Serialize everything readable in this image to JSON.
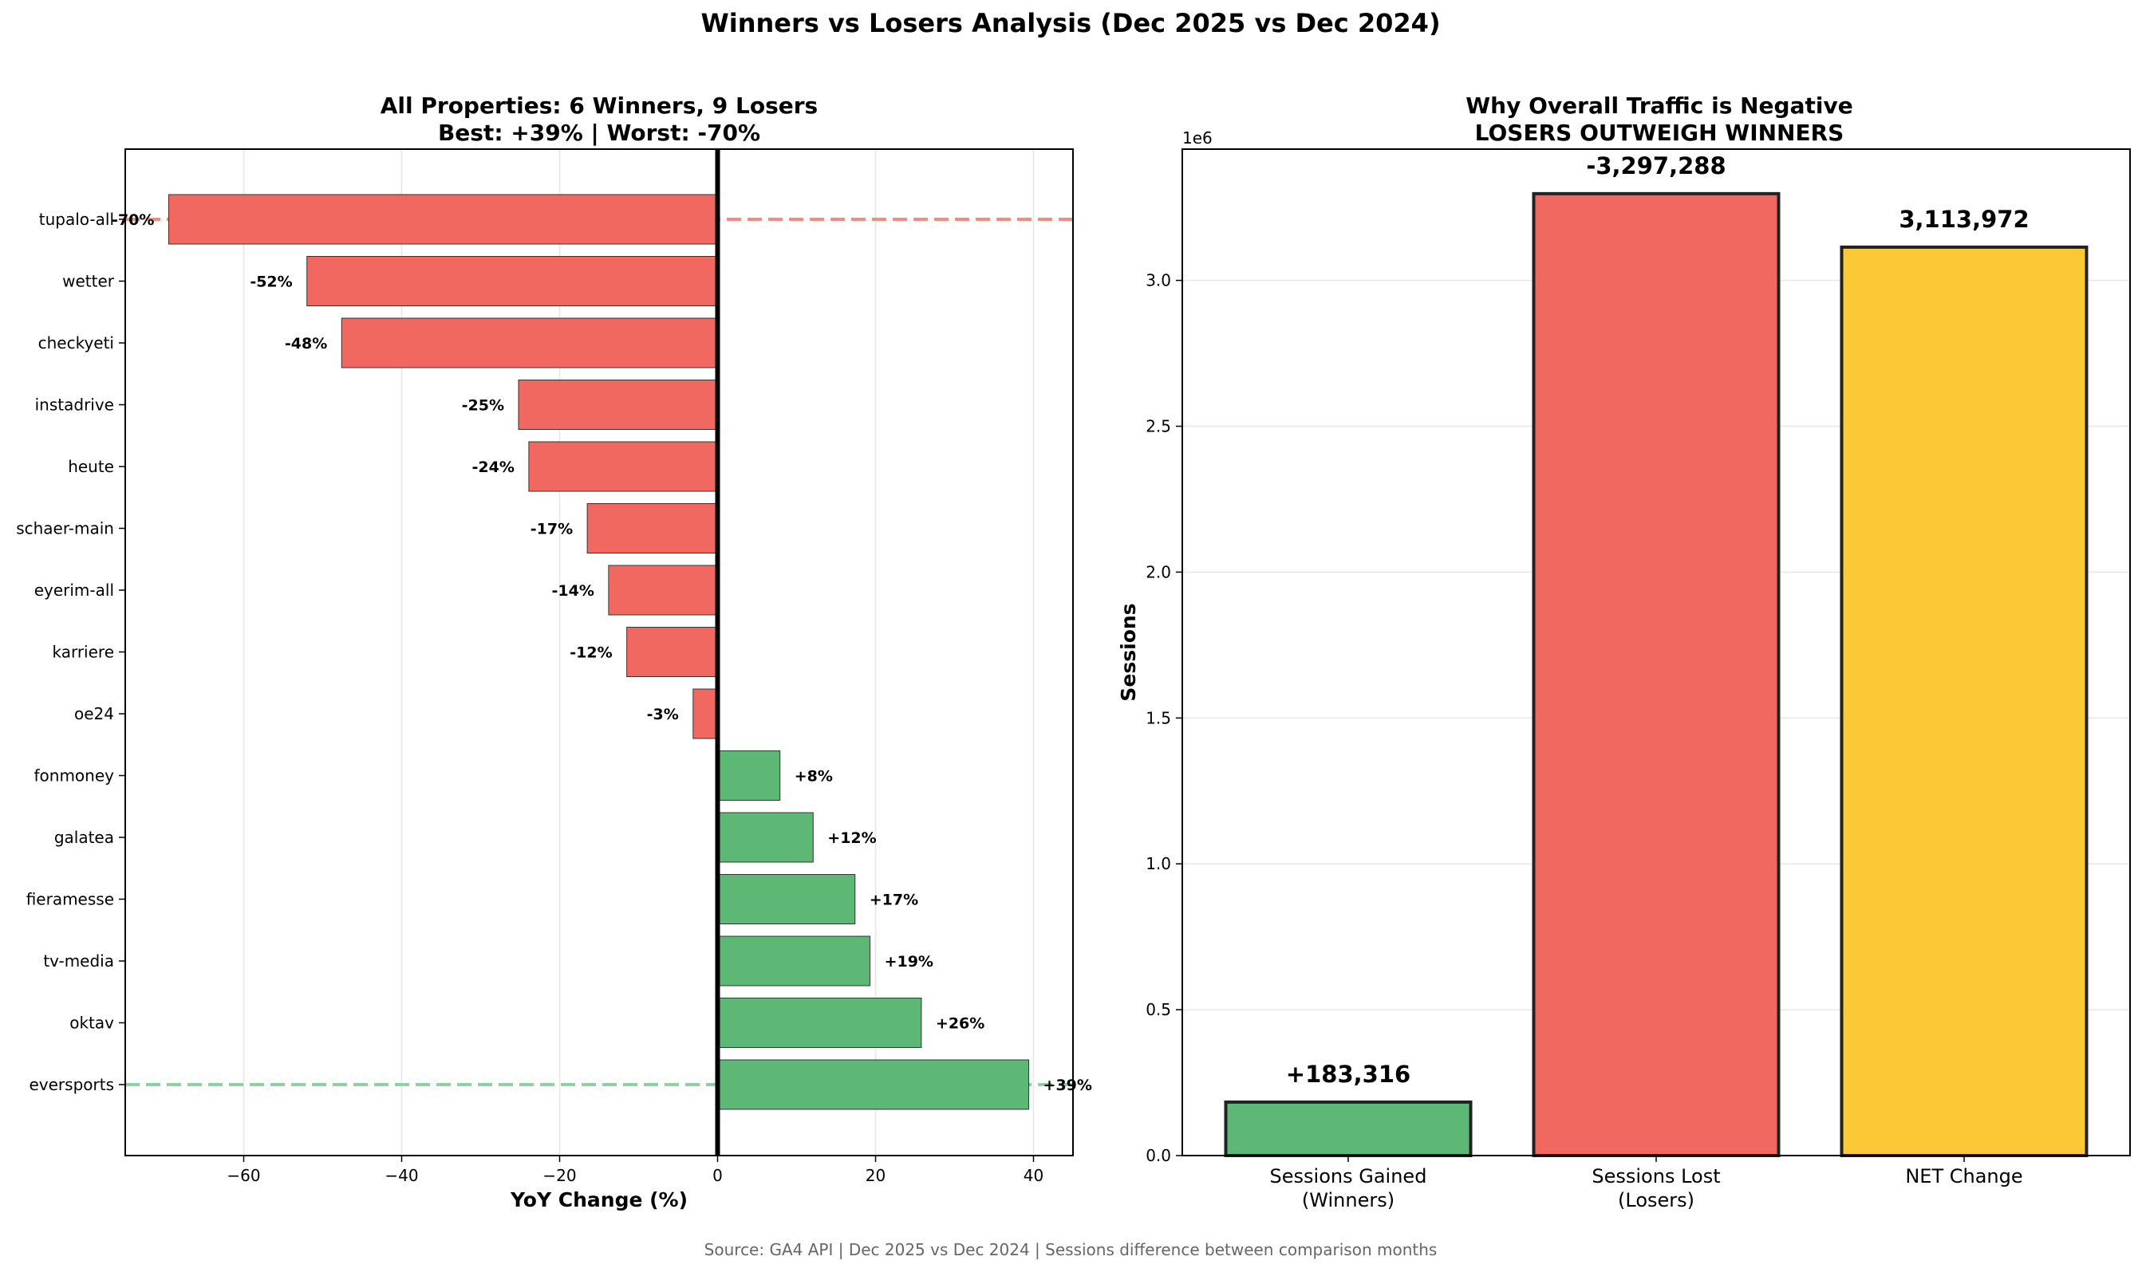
{
  "suptitle": "Winners vs Losers Analysis (Dec 2025 vs Dec 2024)",
  "source": "Source: GA4 API | Dec 2025 vs Dec 2024 | Sessions difference between comparison months",
  "colors": {
    "loser": "#f0685f",
    "winner": "#5cb874",
    "net": "#fbc936",
    "loser_line": "#f28b82",
    "winner_line": "#8fd0a2",
    "grid": "#e6e6e6"
  },
  "chart_data": [
    {
      "type": "bar",
      "orientation": "horizontal",
      "title": "All Properties: 6 Winners, 9 Losers",
      "subtitle": "Best: +39% | Worst: -70%",
      "xlabel": "YoY Change (%)",
      "ylabel": "",
      "xlim": [
        -75,
        45
      ],
      "xticks": [
        -60,
        -40,
        -20,
        0,
        20,
        40
      ],
      "xtick_labels": [
        "−60",
        "−40",
        "−20",
        "0",
        "20",
        "40"
      ],
      "grid": "x",
      "categories": [
        "tupalo-all",
        "wetter",
        "checkyeti",
        "instadrive",
        "heute",
        "schaer-main",
        "eyerim-all",
        "karriere",
        "oe24",
        "fonmoney",
        "galatea",
        "fieramesse",
        "tv-media",
        "oktav",
        "eversports"
      ],
      "values": [
        -69.5,
        -52,
        -47.6,
        -25.2,
        -23.9,
        -16.5,
        -13.8,
        -11.5,
        -3.1,
        7.9,
        12.1,
        17.4,
        19.3,
        25.8,
        39.4
      ],
      "labels": [
        "-70%",
        "-52%",
        "-48%",
        "-25%",
        "-24%",
        "-17%",
        "-14%",
        "-12%",
        "-3%",
        "+8%",
        "+12%",
        "+17%",
        "+19%",
        "+26%",
        "+39%"
      ],
      "reference_lines": [
        {
          "category": "tupalo-all",
          "style": "dashed",
          "color": "loser"
        },
        {
          "category": "eversports",
          "style": "dashed",
          "color": "winner"
        }
      ]
    },
    {
      "type": "bar",
      "title": "Why Overall Traffic is Negative",
      "subtitle": "LOSERS OUTWEIGH WINNERS",
      "xlabel": "",
      "ylabel": "Sessions",
      "scale_label": "1e6",
      "ylim": [
        0,
        3.45
      ],
      "yticks": [
        0,
        0.5,
        1.0,
        1.5,
        2.0,
        2.5,
        3.0
      ],
      "ytick_labels": [
        "0.0",
        "0.5",
        "1.0",
        "1.5",
        "2.0",
        "2.5",
        "3.0"
      ],
      "grid": "y",
      "categories": [
        {
          "line1": "Sessions Gained",
          "line2": "(Winners)"
        },
        {
          "line1": "Sessions Lost",
          "line2": "(Losers)"
        },
        {
          "line1": "NET Change",
          "line2": ""
        }
      ],
      "values": [
        0.183316,
        3.297288,
        3.113972
      ],
      "labels": [
        "+183,316",
        "-3,297,288",
        "3,113,972"
      ],
      "colors": [
        "winner",
        "loser",
        "net"
      ]
    }
  ]
}
